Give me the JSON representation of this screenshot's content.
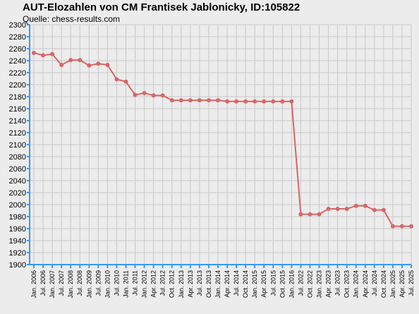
{
  "title": "AUT-Elozahlen von CM Frantisek Jablonicky, ID:105822",
  "subtitle": "Quelle: chess-results.com",
  "colors": {
    "background": "#ececec",
    "grid": "#c8c8c8",
    "axis": "#3399ff",
    "line": "#d96666",
    "point": "#d96666"
  },
  "chart_data": {
    "type": "line",
    "title": "AUT-Elozahlen von CM Frantisek Jablonicky, ID:105822",
    "subtitle": "Quelle: chess-results.com",
    "xlabel": "",
    "ylabel": "",
    "ylim": [
      1900,
      2300
    ],
    "ytick_step": 20,
    "grid": true,
    "legend": "none",
    "categories": [
      "Jan. 2006",
      "Jul. 2006",
      "Jan. 2007",
      "Jul. 2007",
      "Jan. 2008",
      "Jul. 2008",
      "Jan. 2009",
      "Jul. 2009",
      "Jan. 2010",
      "Jul. 2010",
      "Jan. 2011",
      "Jul. 2011",
      "Jan. 2012",
      "Apr. 2012",
      "Jul. 2012",
      "Oct. 2012",
      "Jan. 2013",
      "Apr. 2013",
      "Jul. 2013",
      "Oct. 2013",
      "Jan. 2014",
      "Apr. 2014",
      "Jul. 2014",
      "Oct. 2014",
      "Jan. 2015",
      "Apr. 2015",
      "Jul. 2015",
      "Oct. 2015",
      "Jan. 2016",
      "Jul. 2022",
      "Oct. 2022",
      "Jan. 2023",
      "Apr. 2023",
      "Jul. 2023",
      "Oct. 2023",
      "Jan. 2024",
      "Apr. 2024",
      "Jul. 2024",
      "Oct. 2024",
      "Jan. 2025",
      "Apr. 2025",
      "Jul. 2025"
    ],
    "series": [
      {
        "values": [
          2253,
          2249,
          2251,
          2233,
          2241,
          2241,
          2232,
          2235,
          2233,
          2209,
          2205,
          2183,
          2186,
          2182,
          2182,
          2174,
          2174,
          2174,
          2174,
          2174,
          2174,
          2172,
          2172,
          2172,
          2172,
          2172,
          2172,
          2172,
          2172,
          1984,
          1984,
          1984,
          1993,
          1993,
          1993,
          1998,
          1998,
          1991,
          1991,
          1964,
          1964,
          1964
        ]
      }
    ]
  }
}
